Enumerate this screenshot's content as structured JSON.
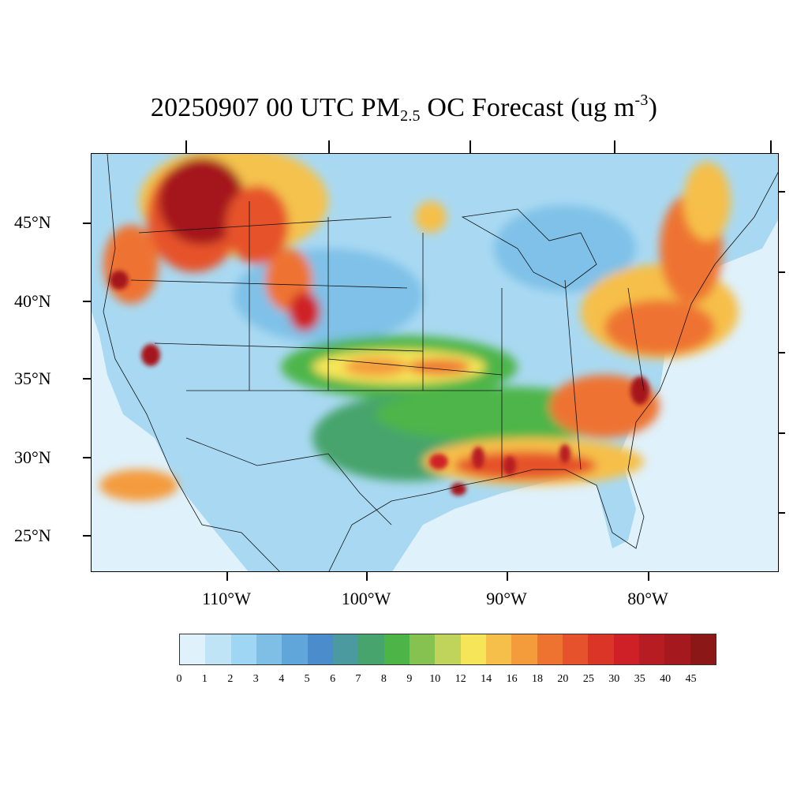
{
  "title": {
    "prefix": "20250907 00 UTC PM",
    "subscript": "2.5",
    "middle": " OC Forecast (ug m",
    "superscript": "-3",
    "suffix": ")"
  },
  "map": {
    "latitude_labels": [
      "45°N",
      "40°N",
      "35°N",
      "30°N",
      "25°N"
    ],
    "longitude_labels": [
      "110°W",
      "100°W",
      "90°W",
      "80°W"
    ],
    "colors": {
      "ocean": "#dff1fb",
      "boundary": "#111111"
    }
  },
  "colorbar": {
    "labels": [
      "0",
      "1",
      "2",
      "3",
      "4",
      "5",
      "6",
      "7",
      "8",
      "9",
      "10",
      "12",
      "14",
      "16",
      "18",
      "20",
      "25",
      "30",
      "35",
      "40",
      "45"
    ],
    "colors": [
      "#dff1fb",
      "#bfe4f6",
      "#9fd6f3",
      "#7fbfe6",
      "#61a6da",
      "#4a8ccc",
      "#4b9aa0",
      "#46a46c",
      "#4db548",
      "#85c250",
      "#c0d35a",
      "#f6e559",
      "#f6bf4a",
      "#f49b3c",
      "#ee7330",
      "#e6522b",
      "#da3526",
      "#cf2027",
      "#b71c23",
      "#a5181d",
      "#8b1717"
    ]
  }
}
